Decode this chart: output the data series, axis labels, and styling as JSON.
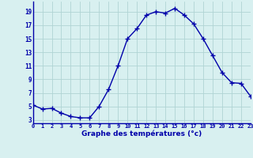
{
  "x": [
    0,
    1,
    2,
    3,
    4,
    5,
    6,
    7,
    8,
    9,
    10,
    11,
    12,
    13,
    14,
    15,
    16,
    17,
    18,
    19,
    20,
    21,
    22,
    23
  ],
  "y": [
    5.2,
    4.6,
    4.7,
    4.0,
    3.5,
    3.3,
    3.3,
    5.0,
    7.5,
    11.0,
    15.0,
    16.5,
    18.5,
    19.0,
    18.8,
    19.5,
    18.5,
    17.2,
    15.0,
    12.5,
    10.0,
    8.5,
    8.4,
    6.5
  ],
  "xlabel": "Graphe des températures (°c)",
  "xlim": [
    0,
    23
  ],
  "ylim": [
    2.5,
    20.5
  ],
  "yticks": [
    3,
    5,
    7,
    9,
    11,
    13,
    15,
    17,
    19
  ],
  "xticks": [
    0,
    1,
    2,
    3,
    4,
    5,
    6,
    7,
    8,
    9,
    10,
    11,
    12,
    13,
    14,
    15,
    16,
    17,
    18,
    19,
    20,
    21,
    22,
    23
  ],
  "line_color": "#0000AA",
  "marker": "+",
  "bg_color": "#d8f0f0",
  "grid_color": "#b0d4d4",
  "axis_label_color": "#0000AA",
  "tick_label_color": "#0000AA",
  "spine_color": "#0000AA"
}
